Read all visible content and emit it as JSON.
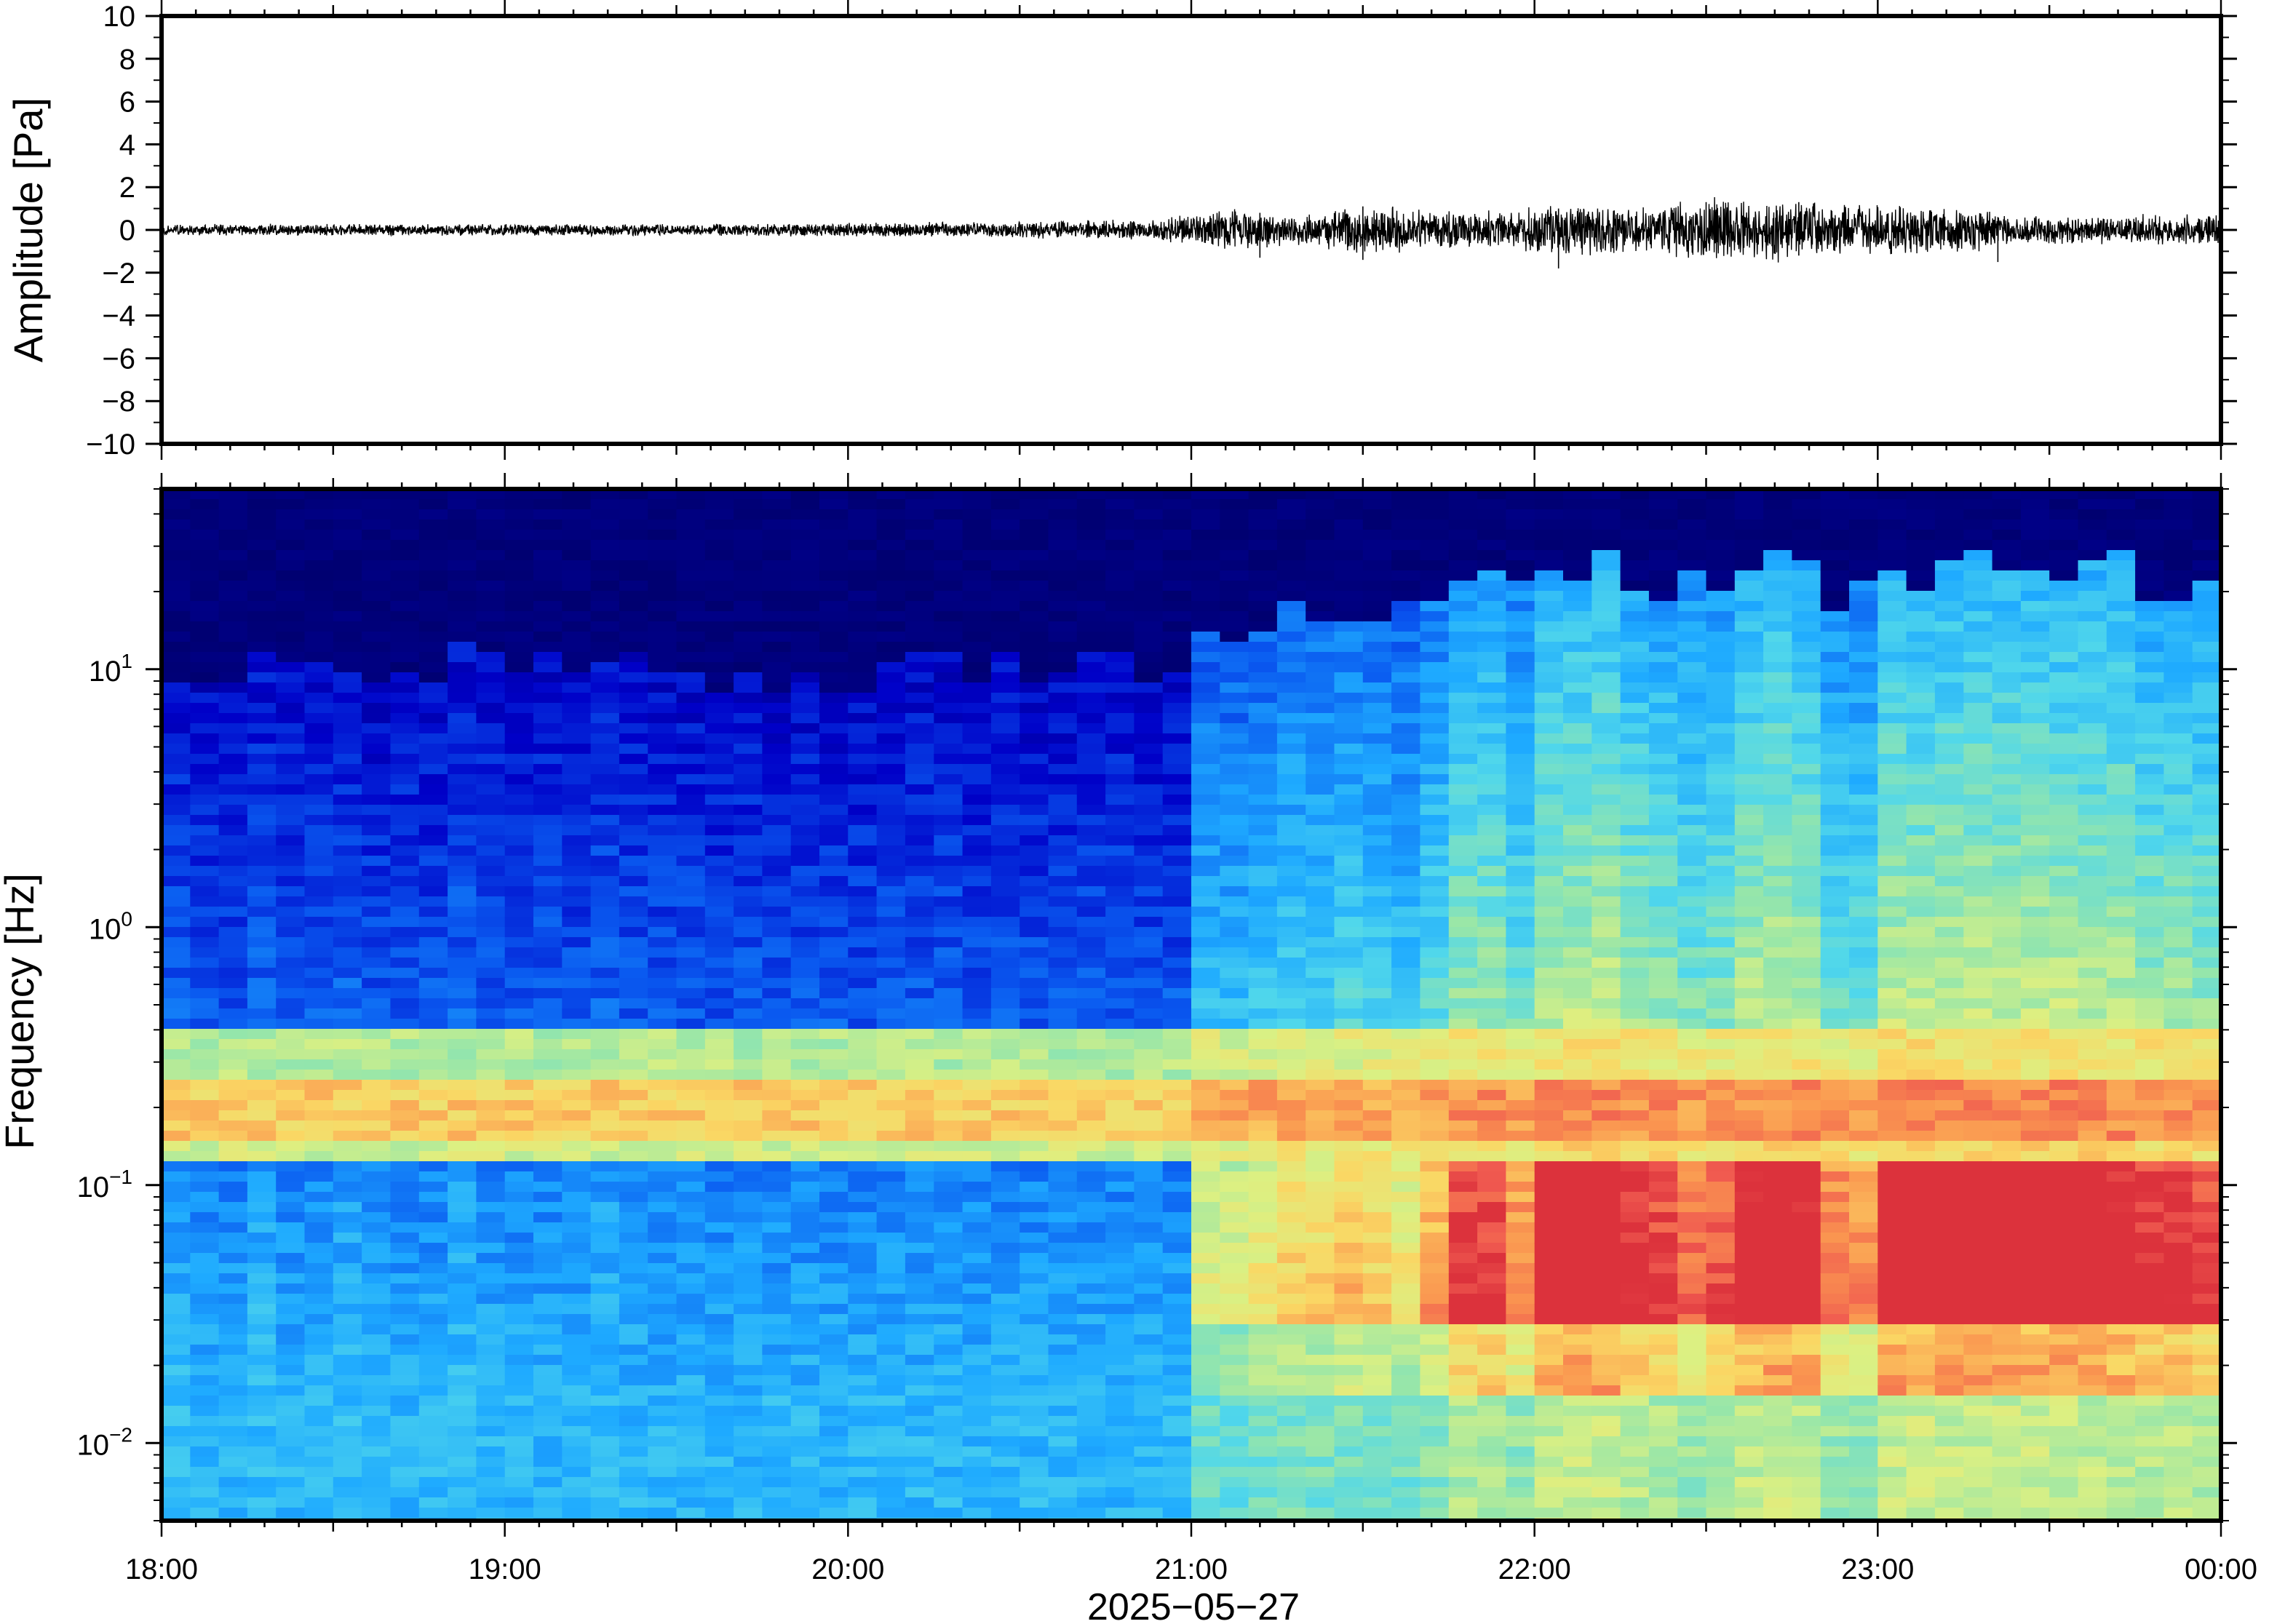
{
  "chart_data": [
    {
      "type": "line",
      "panel": "waveform",
      "ylabel": "Amplitude [Pa]",
      "ylim": [
        -10,
        10
      ],
      "yticks": [
        10,
        8,
        6,
        4,
        2,
        0,
        -2,
        -4,
        -6,
        -8,
        -10
      ],
      "ytick_labels": [
        "10",
        "8",
        "6",
        "4",
        "2",
        "0",
        "−2",
        "−4",
        "−6",
        "−8",
        "−10"
      ],
      "x_range_hours": [
        18,
        24
      ],
      "envelope": {
        "hours": [
          18.0,
          18.5,
          19.0,
          19.5,
          20.0,
          20.5,
          20.9,
          21.1,
          21.3,
          21.5,
          21.8,
          22.0,
          22.1,
          22.3,
          22.5,
          22.7,
          22.9,
          23.1,
          23.3,
          23.5,
          23.7,
          24.0
        ],
        "amplitude": [
          0.25,
          0.25,
          0.25,
          0.25,
          0.3,
          0.35,
          0.45,
          0.9,
          0.6,
          1.1,
          0.8,
          0.9,
          1.2,
          0.9,
          1.3,
          1.3,
          1.1,
          1.0,
          0.9,
          0.6,
          0.6,
          0.7
        ]
      },
      "spikes": [
        {
          "hour": 21.2,
          "min": -1.3,
          "max": 0.8
        },
        {
          "hour": 21.5,
          "min": -1.4,
          "max": 1.1
        },
        {
          "hour": 22.07,
          "min": -1.8,
          "max": 1.0
        },
        {
          "hour": 22.5,
          "min": -1.0,
          "max": 1.3
        },
        {
          "hour": 22.77,
          "min": -1.2,
          "max": 1.3
        },
        {
          "hour": 23.35,
          "min": -1.5,
          "max": 0.6
        }
      ]
    },
    {
      "type": "heatmap",
      "panel": "spectrogram",
      "ylabel": "Frequency [Hz]",
      "y_scale": "log",
      "ylim": [
        0.005,
        50
      ],
      "yticks": [
        0.01,
        0.1,
        1,
        10
      ],
      "ytick_labels": [
        {
          "base": "10",
          "exp": "−2"
        },
        {
          "base": "10",
          "exp": "−1"
        },
        {
          "base": "10",
          "exp": "0"
        },
        {
          "base": "10",
          "exp": "1"
        }
      ],
      "colormap": "jet",
      "xlabel": "2025−05−27",
      "x_range_hours": [
        18,
        24
      ],
      "xticks": [
        "18:00",
        "19:00",
        "20:00",
        "21:00",
        "22:00",
        "23:00",
        "00:00"
      ],
      "columns_per_hour": 12,
      "activity_by_column": [
        0.05,
        0.0,
        0.0,
        0.05,
        0.0,
        0.0,
        0.05,
        0.0,
        0.0,
        0.0,
        0.05,
        0.0,
        0.0,
        0.0,
        0.0,
        0.05,
        0.0,
        -0.05,
        0.0,
        -0.05,
        0.0,
        0.0,
        0.0,
        0.0,
        0.0,
        0.0,
        -0.05,
        -0.05,
        -0.05,
        0.0,
        0.0,
        -0.1,
        -0.1,
        0.0,
        0.0,
        -0.05,
        0.45,
        0.45,
        0.5,
        0.55,
        0.55,
        0.6,
        0.55,
        0.5,
        0.65,
        0.85,
        0.85,
        0.7,
        0.95,
        1.0,
        1.0,
        0.9,
        0.85,
        0.75,
        0.8,
        0.95,
        1.0,
        0.95,
        0.75,
        0.7,
        1.0,
        1.0,
        1.0,
        1.0,
        1.0,
        1.0,
        1.0,
        0.95,
        0.95,
        0.9,
        0.9,
        0.85
      ],
      "noise_floor_top_freq_hz": {
        "quiet": 10,
        "active": 25
      },
      "microbarom_band_hz": [
        0.15,
        0.25
      ],
      "peak_low_band_hz": [
        0.03,
        0.12
      ]
    }
  ]
}
